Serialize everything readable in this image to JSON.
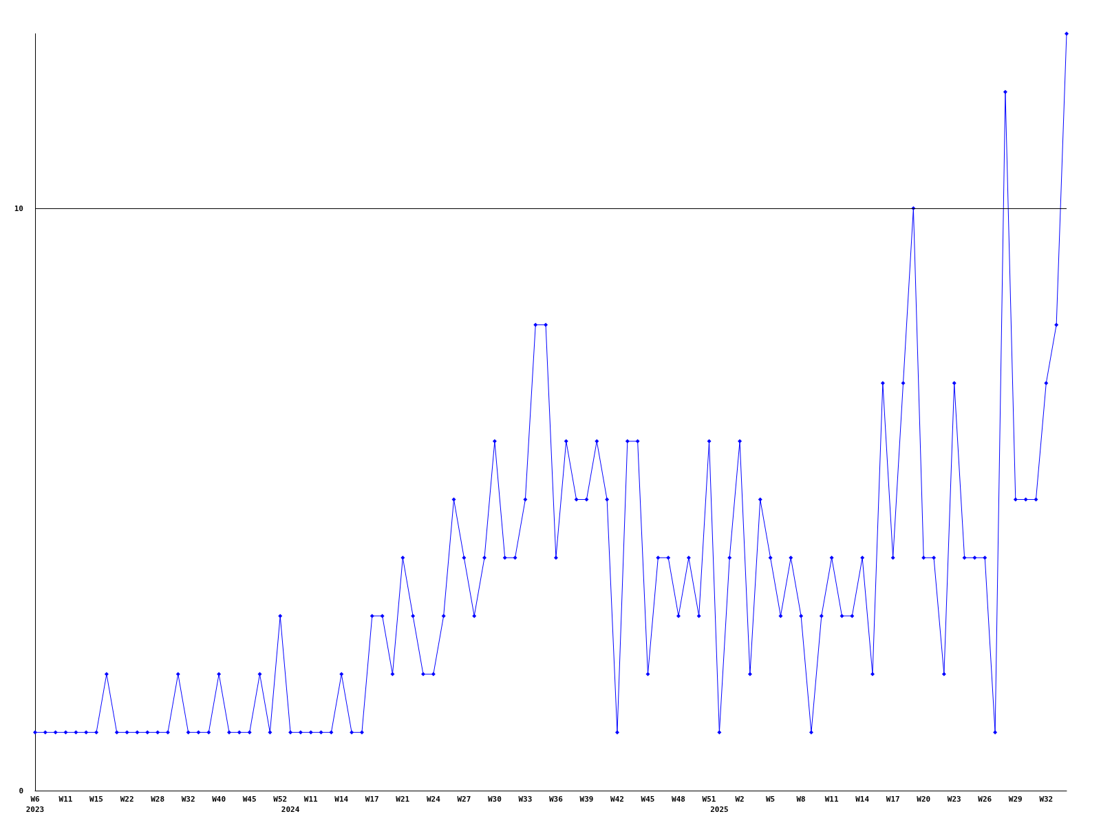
{
  "chart_data": {
    "type": "line",
    "categories": [
      "W6\n2023",
      null,
      null,
      "W11",
      null,
      null,
      "W15",
      null,
      null,
      "W22",
      null,
      null,
      "W28",
      null,
      null,
      "W32",
      null,
      null,
      "W40",
      null,
      null,
      "W45",
      null,
      null,
      "W52",
      "\n2024",
      null,
      "W11",
      null,
      null,
      "W14",
      null,
      null,
      "W17",
      null,
      null,
      "W21",
      null,
      null,
      "W24",
      null,
      null,
      "W27",
      null,
      null,
      "W30",
      null,
      null,
      "W33",
      null,
      null,
      "W36",
      null,
      null,
      "W39",
      null,
      null,
      "W42",
      null,
      null,
      "W45",
      null,
      null,
      "W48",
      null,
      null,
      "W51",
      "\n2025",
      null,
      "W2",
      null,
      null,
      "W5",
      null,
      null,
      "W8",
      null,
      null,
      "W11",
      null,
      null,
      "W14",
      null,
      null,
      "W17",
      null,
      null,
      "W20",
      null,
      null,
      "W23",
      null,
      null,
      "W26",
      null,
      null,
      "W29",
      null,
      null,
      "W32",
      null,
      null
    ],
    "values": [
      1,
      1,
      1,
      1,
      1,
      1,
      1,
      2,
      1,
      1,
      1,
      1,
      1,
      1,
      2,
      1,
      1,
      1,
      2,
      1,
      1,
      1,
      2,
      1,
      3,
      1,
      1,
      1,
      1,
      1,
      2,
      1,
      1,
      3,
      3,
      2,
      4,
      3,
      2,
      2,
      3,
      5,
      4,
      3,
      4,
      6,
      4,
      4,
      5,
      8,
      8,
      4,
      6,
      5,
      5,
      6,
      5,
      1,
      6,
      6,
      2,
      4,
      4,
      3,
      4,
      3,
      6,
      1,
      4,
      6,
      2,
      5,
      4,
      3,
      4,
      3,
      1,
      3,
      4,
      3,
      3,
      4,
      2,
      7,
      4,
      7,
      10,
      4,
      4,
      2,
      7,
      4,
      4,
      4,
      1,
      12,
      5,
      5,
      5,
      7,
      8,
      13
    ],
    "color": "#0000ff",
    "ylim": [
      0,
      13
    ],
    "yticks": [
      0,
      10
    ],
    "grid": "y",
    "marker": "diamond",
    "line_style": "solid"
  }
}
